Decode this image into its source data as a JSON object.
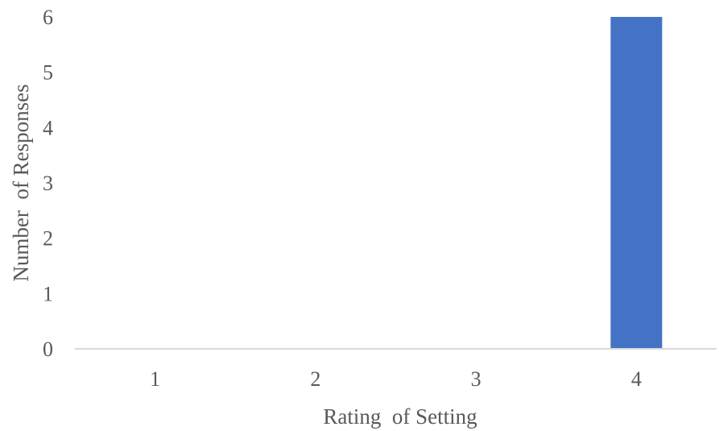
{
  "chart_data": {
    "type": "bar",
    "categories": [
      "1",
      "2",
      "3",
      "4"
    ],
    "series": [
      {
        "values": [
          0,
          0,
          0,
          6
        ],
        "color": "#4472C4"
      }
    ],
    "xlabel": "Rating  of Setting",
    "ylabel": "Number  of Responses",
    "ylim": [
      0,
      6
    ],
    "yticks": [
      "0",
      "1",
      "2",
      "3",
      "4",
      "5",
      "6"
    ],
    "grid": false,
    "legend": "none",
    "axis_color": "#D9D9D9"
  }
}
